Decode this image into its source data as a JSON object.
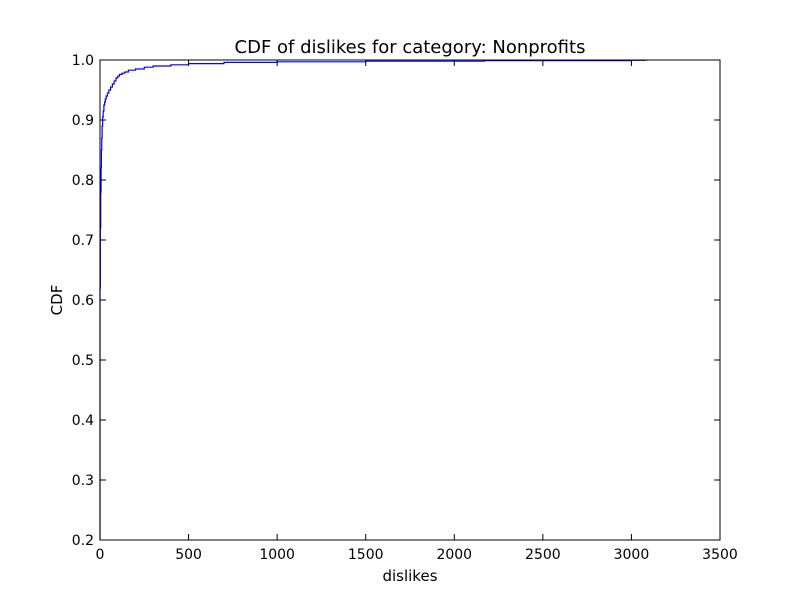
{
  "chart_data": {
    "type": "line",
    "title": "CDF of dislikes for category: Nonprofits",
    "xlabel": "dislikes",
    "ylabel": "CDF",
    "xlim": [
      0,
      3500
    ],
    "ylim": [
      0.2,
      1.0
    ],
    "xticks": [
      0,
      500,
      1000,
      1500,
      2000,
      2500,
      3000,
      3500
    ],
    "yticks": [
      0.2,
      0.3,
      0.4,
      0.5,
      0.6,
      0.7,
      0.8,
      0.9,
      1.0
    ],
    "grid": false,
    "line_color": "#0000ff",
    "series": [
      {
        "x": [
          0,
          0,
          2,
          4,
          6,
          8,
          10,
          12,
          15,
          18,
          22,
          26,
          30,
          35,
          42,
          50,
          60,
          70,
          80,
          90,
          100,
          110,
          125,
          140,
          160,
          200,
          250,
          300,
          400,
          500,
          700,
          1000,
          1500,
          2000,
          2170,
          2500,
          3000,
          3080
        ],
        "y": [
          0.2,
          0.62,
          0.72,
          0.78,
          0.82,
          0.85,
          0.87,
          0.89,
          0.905,
          0.915,
          0.925,
          0.93,
          0.935,
          0.94,
          0.945,
          0.95,
          0.955,
          0.96,
          0.965,
          0.97,
          0.973,
          0.976,
          0.978,
          0.98,
          0.983,
          0.985,
          0.988,
          0.99,
          0.992,
          0.994,
          0.996,
          0.997,
          0.998,
          0.998,
          0.999,
          0.999,
          0.9995,
          1.0
        ]
      }
    ]
  }
}
